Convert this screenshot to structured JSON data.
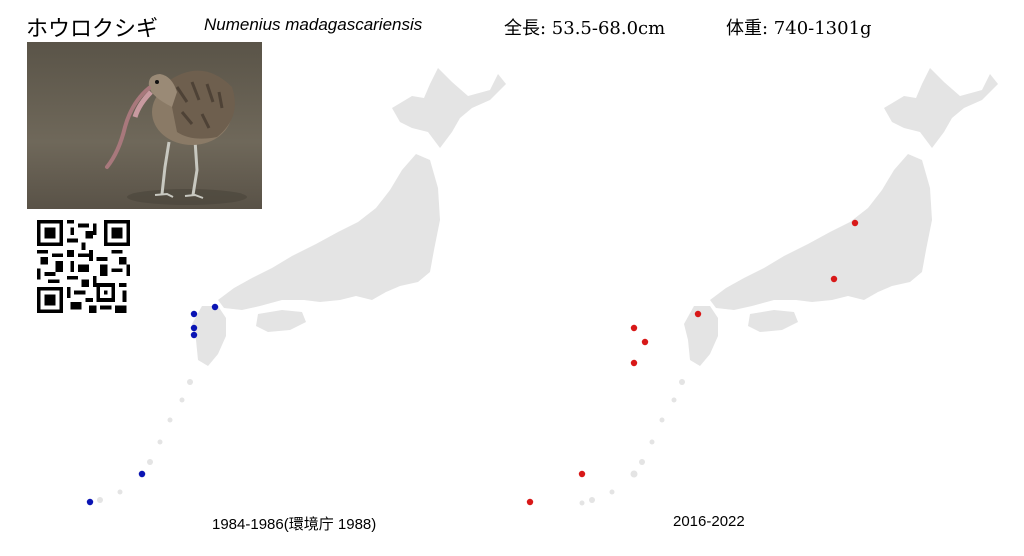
{
  "header": {
    "name_ja": "ホウロクシギ",
    "name_sci": "Numenius madagascariensis",
    "length": "全長: 53.5-68.0cm",
    "weight": "体重: 740-1301g"
  },
  "maps": {
    "left": {
      "caption": "1984-1986(環境庁 1988)",
      "dot_color": "#0a14b4"
    },
    "right": {
      "caption": "2016-2022",
      "dot_color": "#d81818"
    }
  },
  "land_color": "#e4e4e4"
}
